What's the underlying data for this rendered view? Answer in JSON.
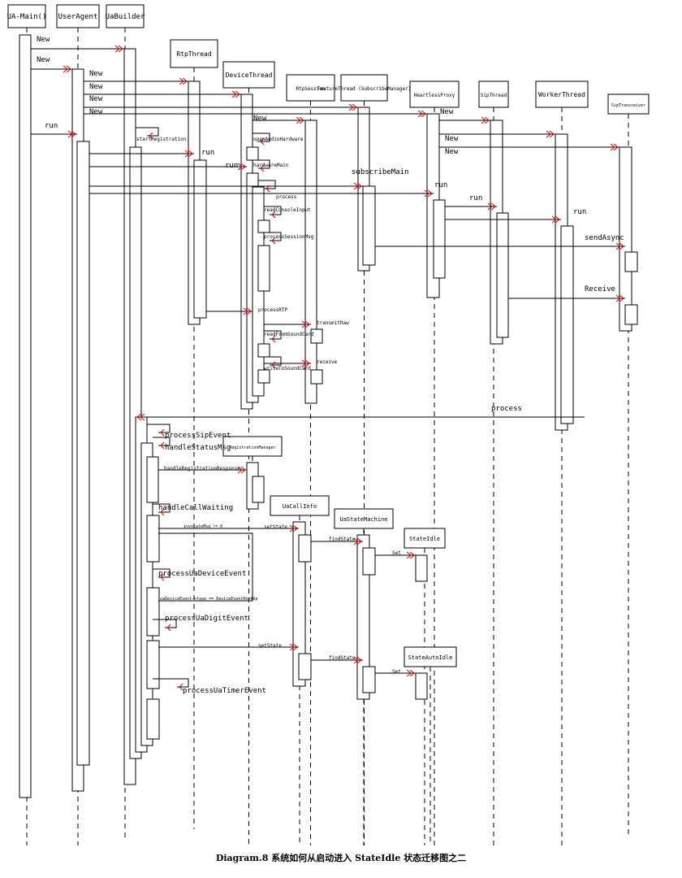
{
  "lifelines": [
    "UA-Main()",
    "UserAgent",
    "UaBuilder",
    "RtpThread",
    "DeviceThread",
    "RtpSession",
    "FeatureThread\n(SubscribeManager)",
    "HeartlessProxy",
    "SipThread",
    "WorkerThread",
    "SipTransceiver",
    "RegistrationManager",
    "UaCallInfo",
    "UaStateMachine",
    "StateIdle",
    "StateAutoIdle"
  ],
  "messages": [
    "New",
    "New",
    "New",
    "New",
    "New",
    "New",
    "New",
    "New",
    "New",
    "New",
    "run",
    "startRegistration",
    "run",
    "run",
    "openAudioHardware",
    "hardwareMain",
    "subscribeMain",
    "run",
    "run",
    "run",
    "process",
    "readConsoleInput",
    "processSessionMsg",
    "sendAsync",
    "Receive",
    "processRTP",
    "transmitRaw",
    "readFromSoundCard",
    "receive",
    "writeToSoundCard",
    "process",
    "processSipEvent",
    "handleStatusMsg",
    "handleRegistrationResponse",
    "handleCallWaiting",
    "invstateMsg != 0",
    "setState",
    "findState",
    "Set",
    "processUaDeviceEvent",
    "uaDeviceEvent->type == DeviceEventHookUp",
    "processUaDigitEvent",
    "setState",
    "findState",
    "Set",
    "processUaTimerEvent"
  ],
  "caption": "Diagram.8  系统如何从启动进入 StateIdle 状态迁移图之二",
  "colors": {
    "line": "#000000",
    "arrow": "#e00000"
  }
}
